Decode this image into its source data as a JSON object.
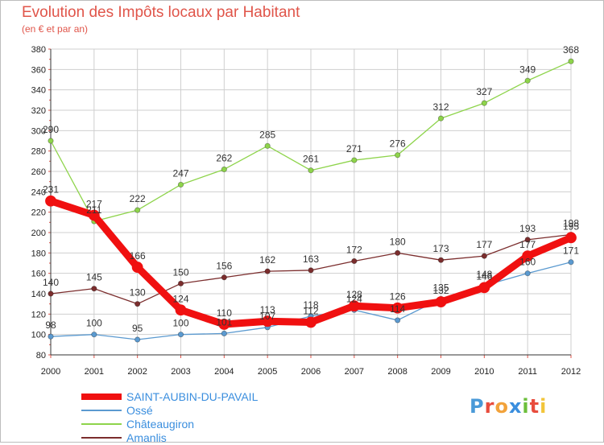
{
  "header": {
    "title": "Evolution des Impôts locaux par Habitant",
    "subtitle": "(en € et par an)"
  },
  "colors": {
    "title": "#e0554a",
    "axis_tick_marks": "#e0554a",
    "grid": "#cccccc",
    "legend_text": "#3a8ede"
  },
  "logo": {
    "text": "Proxiti",
    "letters": [
      {
        "ch": "P",
        "color": "#4a9ad8"
      },
      {
        "ch": "r",
        "color": "#e84c3d"
      },
      {
        "ch": "o",
        "color": "#f2a23a"
      },
      {
        "ch": "x",
        "color": "#3a8ede"
      },
      {
        "ch": "i",
        "color": "#6cbf3c"
      },
      {
        "ch": "t",
        "color": "#e84c3d"
      },
      {
        "ch": "i",
        "color": "#f2c53a"
      }
    ]
  },
  "chart_data": {
    "type": "line",
    "title": "Evolution des Impôts locaux par Habitant",
    "subtitle": "(en € et par an)",
    "x": [
      "2000",
      "2001",
      "2002",
      "2003",
      "2004",
      "2005",
      "2006",
      "2007",
      "2008",
      "2009",
      "2010",
      "2011",
      "2012"
    ],
    "ylim": [
      80,
      380
    ],
    "yticks": [
      80,
      100,
      120,
      140,
      160,
      180,
      200,
      220,
      240,
      260,
      280,
      300,
      320,
      340,
      360,
      380
    ],
    "grid": true,
    "legend_position": "bottom-left",
    "series": [
      {
        "name": "Ossé",
        "color": "#5b9ad0",
        "values": [
          98,
          100,
          95,
          100,
          101,
          107,
          118,
          124,
          114,
          135,
          148,
          160,
          171
        ],
        "labels": [
          "98",
          "100",
          "95",
          "100",
          "101",
          "107",
          "118",
          "124",
          "114",
          "135",
          "148",
          "160",
          "171"
        ]
      },
      {
        "name": "Châteaugiron",
        "color": "#8ed44b",
        "values": [
          290,
          211,
          222,
          247,
          262,
          285,
          261,
          271,
          276,
          312,
          327,
          349,
          368
        ],
        "labels": [
          "290",
          "211",
          "222",
          "247",
          "262",
          "285",
          "261",
          "271",
          "276",
          "312",
          "327",
          "349",
          "368"
        ]
      },
      {
        "name": "Amanlis",
        "color": "#7b2d2d",
        "values": [
          140,
          145,
          130,
          150,
          156,
          162,
          163,
          172,
          180,
          173,
          177,
          193,
          198
        ],
        "labels": [
          "140",
          "145",
          "130",
          "150",
          "156",
          "162",
          "163",
          "172",
          "180",
          "173",
          "177",
          "193",
          "198"
        ]
      },
      {
        "name": "SAINT-AUBIN-DU-PAVAIL",
        "color": "#f01010",
        "values": [
          231,
          217,
          166,
          124,
          110,
          113,
          112,
          128,
          126,
          132,
          146,
          177,
          195
        ],
        "labels": [
          "231",
          "217",
          "166",
          "124",
          "110",
          "113",
          "112",
          "128",
          "126",
          "132",
          "146",
          "177",
          "195"
        ]
      }
    ]
  },
  "legend": [
    {
      "label": "SAINT-AUBIN-DU-PAVAIL",
      "color": "#f01010",
      "thickness": "thick"
    },
    {
      "label": "Ossé",
      "color": "#5b9ad0",
      "thickness": "thin"
    },
    {
      "label": "Châteaugiron",
      "color": "#8ed44b",
      "thickness": "thin"
    },
    {
      "label": "Amanlis",
      "color": "#7b2d2d",
      "thickness": "thin"
    }
  ]
}
